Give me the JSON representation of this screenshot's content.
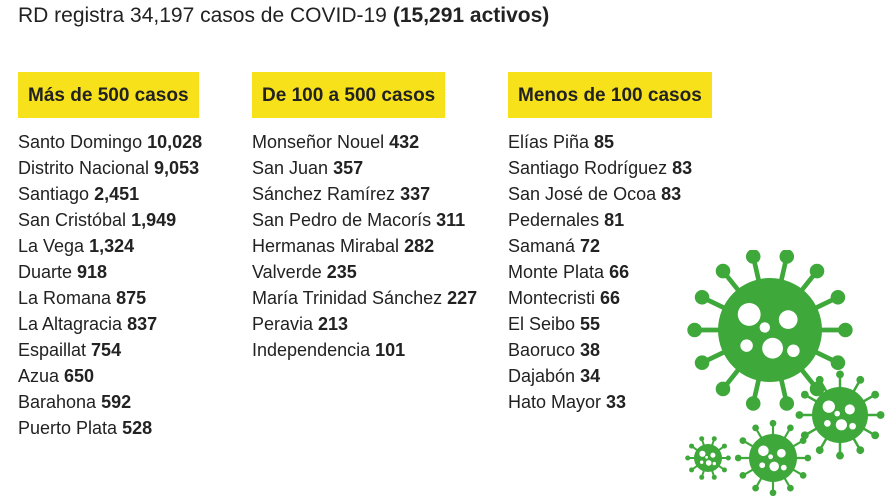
{
  "title": {
    "text": "RD registra 34,197 casos de COVID-19",
    "bold": "(15,291 activos)"
  },
  "columns": [
    {
      "header": "Más de 500 casos",
      "items": [
        {
          "name": "Santo Domingo",
          "count": "10,028"
        },
        {
          "name": "Distrito Nacional",
          "count": "9,053"
        },
        {
          "name": "Santiago",
          "count": "2,451"
        },
        {
          "name": "San Cristóbal",
          "count": "1,949"
        },
        {
          "name": "La Vega",
          "count": "1,324"
        },
        {
          "name": "Duarte",
          "count": "918"
        },
        {
          "name": "La Romana",
          "count": "875"
        },
        {
          "name": "La Altagracia",
          "count": "837"
        },
        {
          "name": "Espaillat",
          "count": "754"
        },
        {
          "name": "Azua",
          "count": "650"
        },
        {
          "name": "Barahona",
          "count": "592"
        },
        {
          "name": "Puerto Plata",
          "count": "528"
        }
      ]
    },
    {
      "header": "De 100 a 500 casos",
      "items": [
        {
          "name": "Monseñor Nouel",
          "count": "432"
        },
        {
          "name": "San Juan",
          "count": "357"
        },
        {
          "name": "Sánchez Ramírez",
          "count": "337"
        },
        {
          "name": "San Pedro de Macorís",
          "count": "311"
        },
        {
          "name": "Hermanas Mirabal",
          "count": "282"
        },
        {
          "name": "Valverde",
          "count": "235"
        },
        {
          "name": "María Trinidad Sánchez",
          "count": "227"
        },
        {
          "name": "Peravia",
          "count": "213"
        },
        {
          "name": "Independencia",
          "count": "101"
        }
      ]
    },
    {
      "header": "Menos de 100 casos",
      "items": [
        {
          "name": "Elías Piña",
          "count": "85"
        },
        {
          "name": "Santiago Rodríguez",
          "count": "83"
        },
        {
          "name": "San José de Ocoa",
          "count": "83"
        },
        {
          "name": "Pedernales",
          "count": "81"
        },
        {
          "name": "Samaná",
          "count": "72"
        },
        {
          "name": "Monte Plata",
          "count": "66"
        },
        {
          "name": "Montecristi",
          "count": "66"
        },
        {
          "name": "El Seibo",
          "count": "55"
        },
        {
          "name": "Baoruco",
          "count": "38"
        },
        {
          "name": "Dajabón",
          "count": "34"
        },
        {
          "name": "Hato Mayor",
          "count": "33"
        }
      ]
    }
  ]
}
